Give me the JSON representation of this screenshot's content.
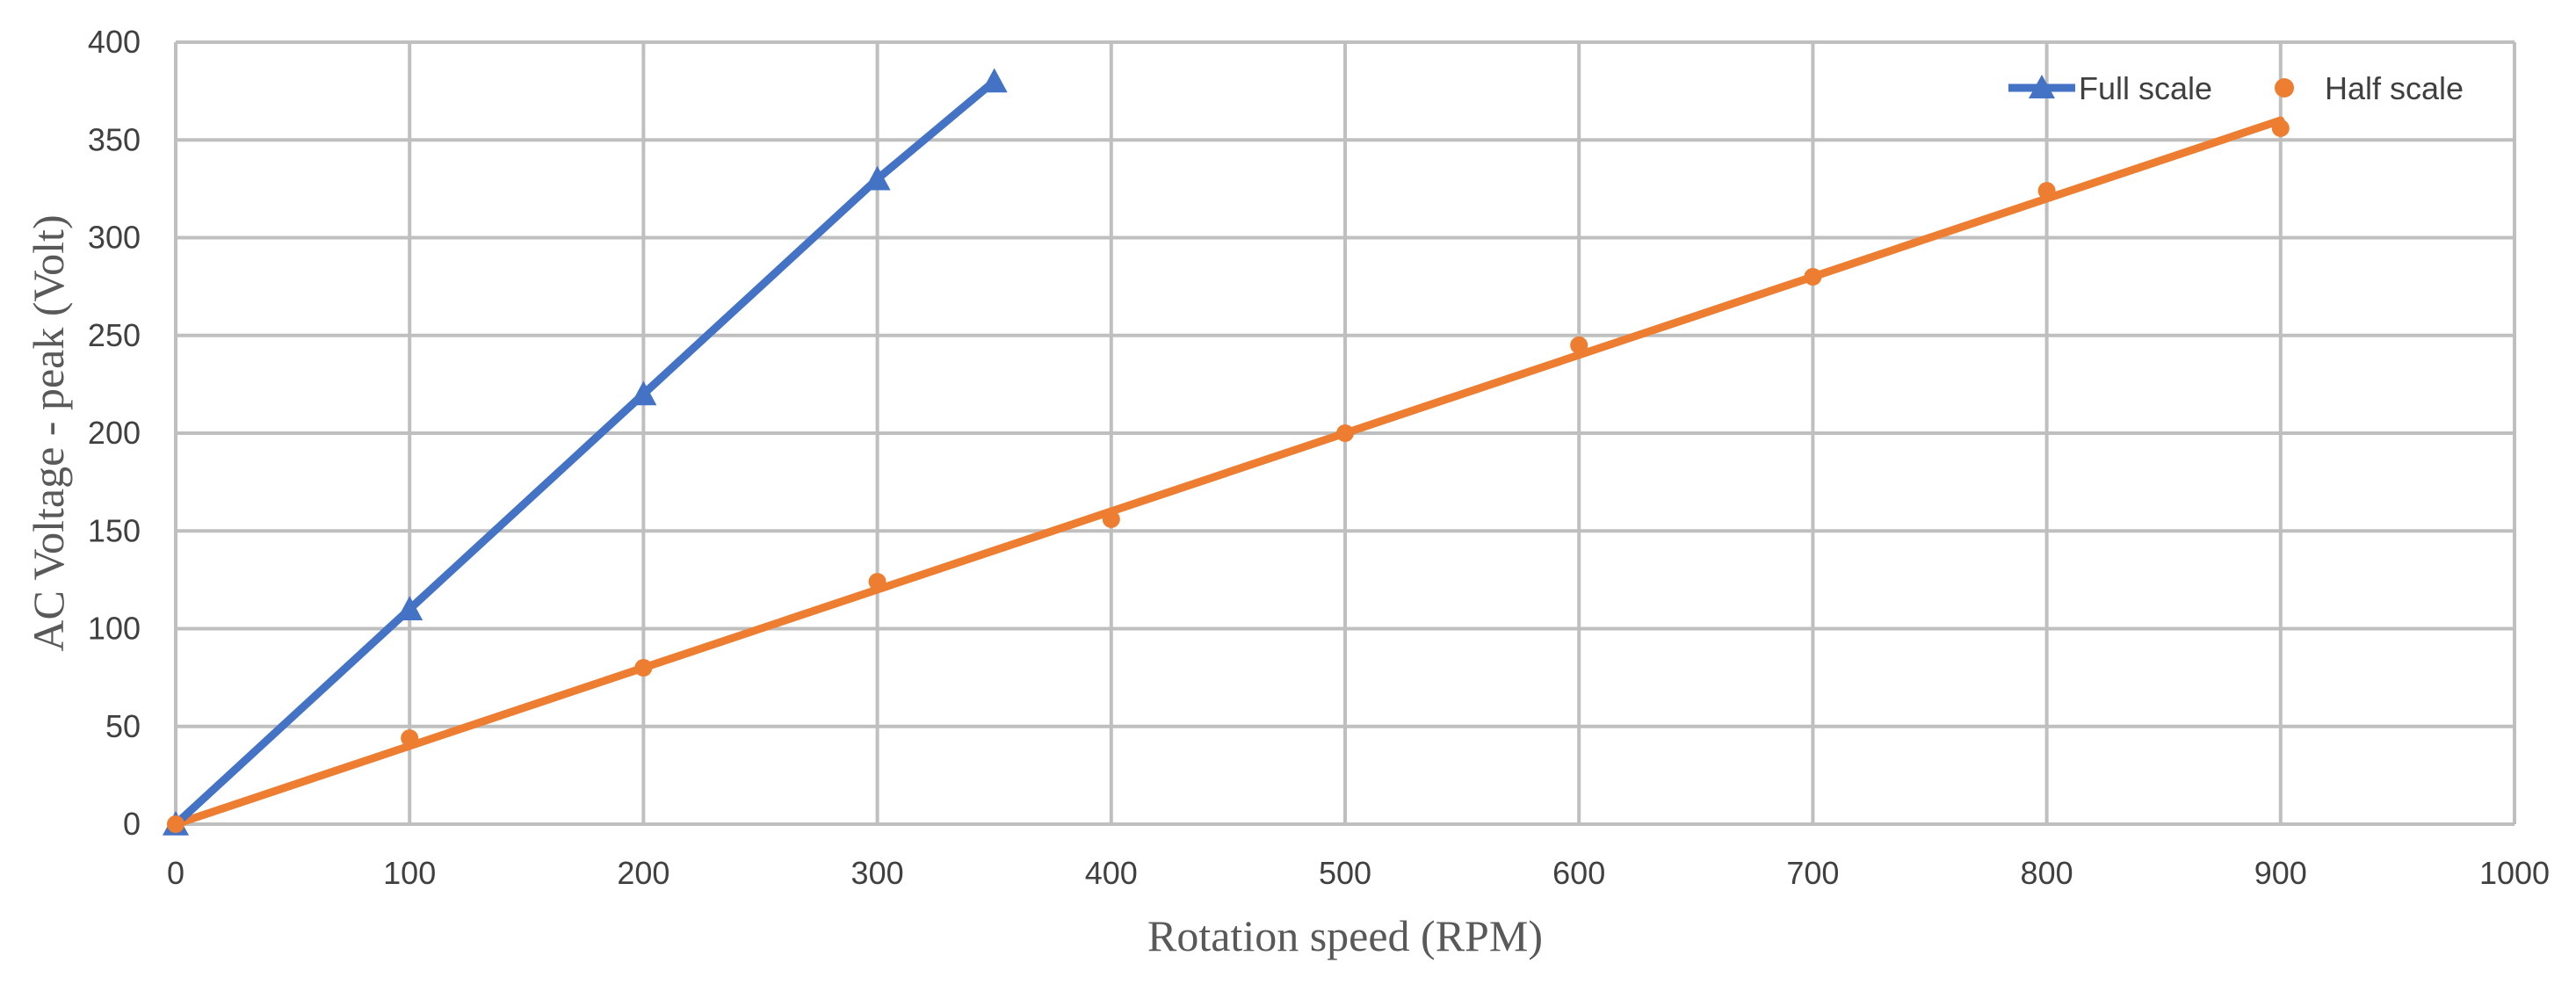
{
  "chart_data": {
    "type": "scatter",
    "title": "",
    "xlabel": "Rotation speed (RPM)",
    "ylabel": "AC Voltage - peak (Volt)",
    "xlim": [
      0,
      1000
    ],
    "ylim": [
      0,
      400
    ],
    "xticks": [
      0,
      100,
      200,
      300,
      400,
      500,
      600,
      700,
      800,
      900,
      1000
    ],
    "yticks": [
      0,
      50,
      100,
      150,
      200,
      250,
      300,
      350,
      400
    ],
    "grid": true,
    "legend_position": "top-right",
    "series": [
      {
        "name": "Full scale",
        "color": "#4472C4",
        "marker": "triangle",
        "line": true,
        "x": [
          0,
          100,
          200,
          300,
          350
        ],
        "y": [
          0,
          110,
          220,
          330,
          380
        ]
      },
      {
        "name": "Half scale",
        "color": "#ED7D31",
        "marker": "circle",
        "line": false,
        "x": [
          0,
          100,
          200,
          300,
          400,
          500,
          600,
          700,
          800,
          900
        ],
        "y": [
          0,
          44,
          80,
          124,
          156,
          200,
          245,
          280,
          324,
          356
        ]
      }
    ],
    "trendline": {
      "series": "Half scale",
      "color": "#ED7D31",
      "x": [
        0,
        900
      ],
      "y": [
        0,
        360
      ]
    }
  }
}
